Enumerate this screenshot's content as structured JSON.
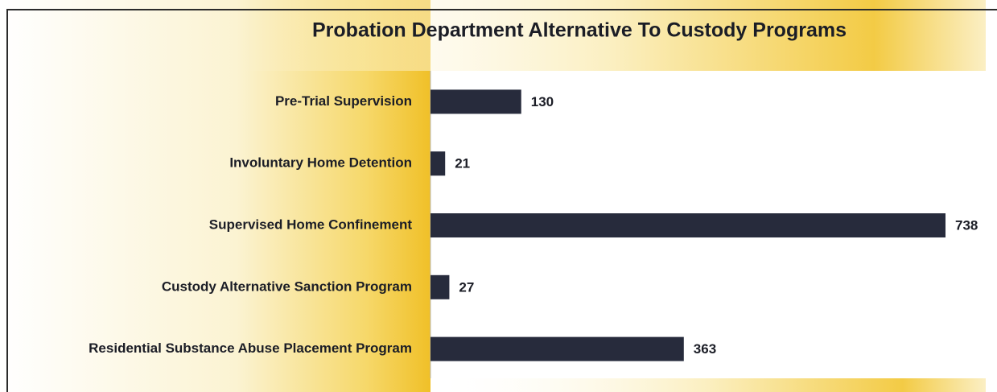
{
  "chart_data": {
    "type": "bar",
    "orientation": "horizontal",
    "title": "Probation Department Alternative To Custody Programs",
    "categories": [
      "Pre-Trial Supervision",
      "Involuntary Home Detention",
      "Supervised Home Confinement",
      "Custody Alternative Sanction Program",
      "Residential Substance Abuse Placement Program"
    ],
    "values": [
      130,
      21,
      738,
      27,
      363
    ],
    "color": "#272b3c"
  }
}
